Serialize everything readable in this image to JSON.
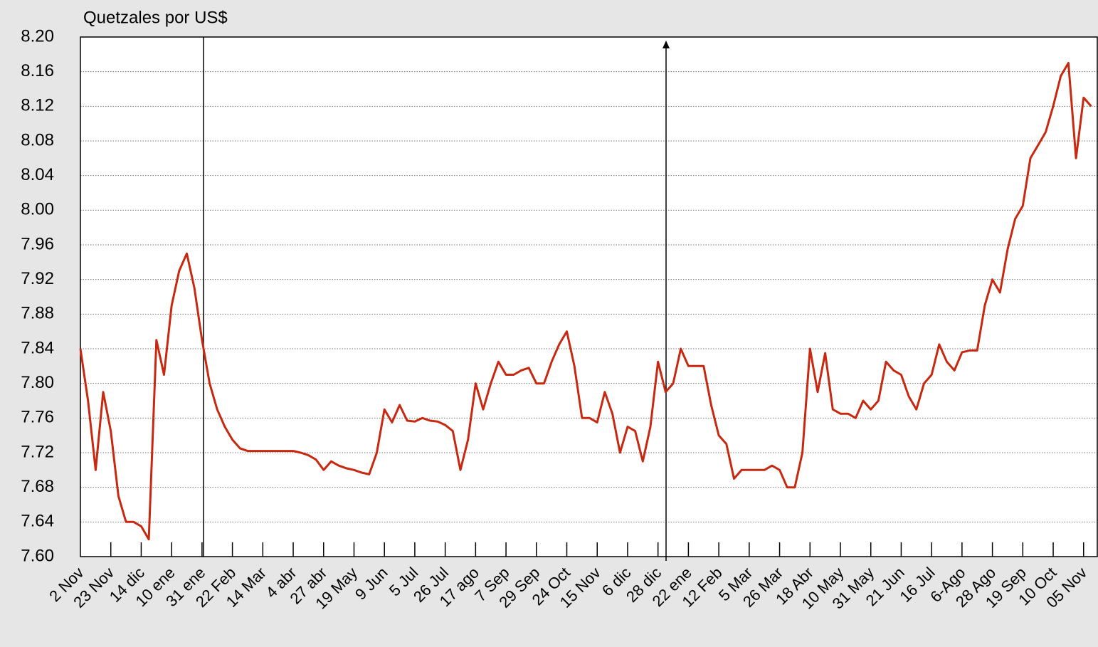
{
  "chart_data": {
    "type": "line",
    "title": "Quetzales por US$",
    "categories": [
      "2 Nov",
      null,
      null,
      null,
      "23 Nov",
      null,
      null,
      null,
      "14 dic",
      null,
      null,
      null,
      "10 ene",
      null,
      null,
      null,
      "31 ene",
      null,
      null,
      null,
      "22 Feb",
      null,
      null,
      null,
      "14 Mar",
      null,
      null,
      null,
      "4 abr",
      null,
      null,
      null,
      "27 abr",
      null,
      null,
      null,
      "19 May",
      null,
      null,
      null,
      "9 Jun",
      null,
      null,
      null,
      "5 Jul",
      null,
      null,
      null,
      "26 Jul",
      null,
      null,
      null,
      "17 ago",
      null,
      null,
      null,
      "7 Sep",
      null,
      null,
      null,
      "29 Sep",
      null,
      null,
      null,
      "24 Oct",
      null,
      null,
      null,
      "15 Nov",
      null,
      null,
      null,
      "6 dic",
      null,
      null,
      null,
      "28 dic",
      null,
      null,
      null,
      "22 ene",
      null,
      null,
      null,
      "12 Feb",
      null,
      null,
      null,
      "5 Mar",
      null,
      null,
      null,
      "26 Mar",
      null,
      null,
      null,
      "18 Abr",
      null,
      null,
      null,
      "10 May",
      null,
      null,
      null,
      "31 May",
      null,
      null,
      null,
      "21 Jun",
      null,
      null,
      null,
      "16 Jul",
      null,
      null,
      null,
      "6-Ago",
      null,
      null,
      null,
      "28 Ago",
      null,
      null,
      null,
      "19 Sep",
      null,
      null,
      null,
      "10 Oct",
      null,
      null,
      null,
      "05 Nov",
      null
    ],
    "values": [
      7.84,
      7.78,
      7.7,
      7.79,
      7.745,
      7.67,
      7.64,
      7.64,
      7.635,
      7.62,
      7.85,
      7.81,
      7.89,
      7.93,
      7.95,
      7.91,
      7.85,
      7.8,
      7.77,
      7.75,
      7.735,
      7.725,
      7.722,
      7.722,
      7.722,
      7.722,
      7.722,
      7.722,
      7.722,
      7.72,
      7.717,
      7.712,
      7.7,
      7.71,
      7.705,
      7.702,
      7.7,
      7.697,
      7.695,
      7.72,
      7.77,
      7.755,
      7.775,
      7.757,
      7.756,
      7.76,
      7.757,
      7.756,
      7.752,
      7.745,
      7.7,
      7.735,
      7.8,
      7.77,
      7.8,
      7.825,
      7.81,
      7.81,
      7.815,
      7.818,
      7.8,
      7.8,
      7.825,
      7.845,
      7.86,
      7.82,
      7.76,
      7.76,
      7.755,
      7.79,
      7.765,
      7.72,
      7.75,
      7.745,
      7.71,
      7.75,
      7.825,
      7.79,
      7.8,
      7.84,
      7.82,
      7.82,
      7.82,
      7.775,
      7.74,
      7.73,
      7.69,
      7.7,
      7.7,
      7.7,
      7.7,
      7.705,
      7.7,
      7.68,
      7.68,
      7.72,
      7.84,
      7.79,
      7.835,
      7.77,
      7.765,
      7.765,
      7.76,
      7.78,
      7.77,
      7.78,
      7.825,
      7.815,
      7.81,
      7.785,
      7.77,
      7.8,
      7.81,
      7.845,
      7.825,
      7.815,
      7.836,
      7.838,
      7.838,
      7.89,
      7.92,
      7.905,
      7.955,
      7.99,
      8.005,
      8.06,
      8.075,
      8.09,
      8.12,
      8.155,
      8.17,
      8.06,
      8.13,
      8.12
    ],
    "color": "#c8280f",
    "ylim": [
      7.6,
      8.2
    ],
    "yticks": [
      {
        "value": 7.6,
        "label": "7.60"
      },
      7.64,
      7.68,
      7.72,
      7.76,
      {
        "value": 7.8,
        "label": "7.80"
      },
      7.84,
      7.88,
      7.92,
      7.96,
      {
        "value": 8.0,
        "label": "8.00"
      },
      8.04,
      8.08,
      8.12,
      8.16,
      {
        "value": 8.2,
        "label": "8.20"
      }
    ],
    "grid": true
  }
}
